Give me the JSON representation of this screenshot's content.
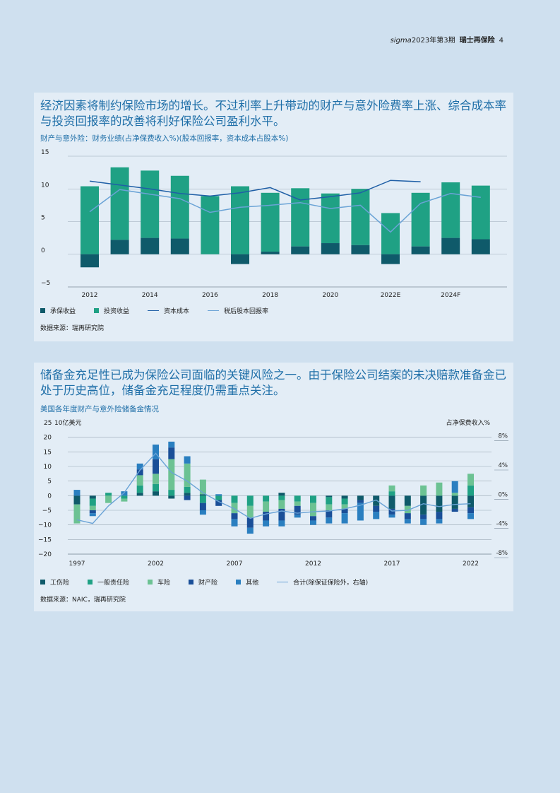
{
  "header": {
    "publication": "sigma",
    "issue": "2023年第3期",
    "brand": "瑞士再保险",
    "page_number": "4"
  },
  "colors": {
    "background": "#cfe0ef",
    "panel": "#e3edf6",
    "title_blue": "#1f6fa8",
    "underwriting": "#0f5a6a",
    "investment": "#1fa184",
    "cost_of_capital": "#1f5fa6",
    "roe": "#6aa3d6",
    "workers_comp": "#0f5a6a",
    "general_liability": "#1fa184",
    "auto": "#6cc293",
    "property": "#1a4f98",
    "other": "#2a7fc0",
    "total_line": "#6aa3d6"
  },
  "panel1": {
    "heading": "经济因素将制约保险市场的增长。不过利率上升带动的财产与意外险费率上涨、综合成本率与投资回报率的改善将利好保险公司盈利水平。",
    "chart_title": "财产与意外险：财务业绩(占净保费收入%)(股本回报率，资本成本占股本%)",
    "legend": [
      "承保收益",
      "投资收益",
      "资本成本",
      "税后股本回报率"
    ],
    "source": "数据来源：瑞再研究院"
  },
  "panel2": {
    "heading": "储备金充足性已成为保险公司面临的关键风险之一。由于保险公司结案的未决赔款准备金已处于历史高位，储备金充足程度仍需重点关注。",
    "chart_title": "美国各年度财产与意外险储备金情况",
    "left_unit": "10亿美元",
    "right_unit": "占净保费收入%",
    "legend": [
      "工伤险",
      "一般责任险",
      "车险",
      "财产险",
      "其他",
      "合计(除保证保险外，右轴)"
    ],
    "source": "数据来源：NAIC，瑞再研究院"
  },
  "chart_data": [
    {
      "type": "bar",
      "stacked": true,
      "x": [
        2012,
        2013,
        2014,
        2015,
        2016,
        2017,
        2018,
        2019,
        2020,
        2021,
        "2022E",
        "2023F",
        "2024F",
        "2025F"
      ],
      "x_tick_labels": [
        "2012",
        "2014",
        "2016",
        "2018",
        "2020",
        "2022E",
        "2024F"
      ],
      "ylim": [
        -5,
        15
      ],
      "yticks": [
        -5,
        0,
        5,
        10,
        15
      ],
      "series": [
        {
          "name": "承保收益",
          "type": "bar",
          "values": [
            -2.0,
            2.2,
            2.5,
            2.4,
            0.0,
            -1.5,
            0.4,
            1.2,
            1.7,
            1.4,
            -1.5,
            1.2,
            2.5,
            2.3
          ]
        },
        {
          "name": "投资收益",
          "type": "bar",
          "values": [
            10.4,
            11.1,
            10.3,
            9.6,
            8.9,
            10.4,
            9.0,
            8.9,
            7.6,
            8.6,
            6.3,
            8.2,
            8.5,
            8.2
          ]
        },
        {
          "name": "资本成本",
          "type": "line",
          "values": [
            11.2,
            10.6,
            10.0,
            9.3,
            8.9,
            9.4,
            10.2,
            8.3,
            8.8,
            9.4,
            11.3,
            11.1,
            null,
            null
          ]
        },
        {
          "name": "税后股本回报率",
          "type": "line",
          "values": [
            6.5,
            9.9,
            9.2,
            8.5,
            6.4,
            7.2,
            7.5,
            7.9,
            7.0,
            7.5,
            3.4,
            7.8,
            9.3,
            8.7
          ]
        }
      ]
    },
    {
      "type": "bar",
      "stacked": true,
      "x": [
        1997,
        1998,
        1999,
        2000,
        2001,
        2002,
        2003,
        2004,
        2005,
        2006,
        2007,
        2008,
        2009,
        2010,
        2011,
        2012,
        2013,
        2014,
        2015,
        2016,
        2017,
        2018,
        2019,
        2020,
        2021,
        2022
      ],
      "x_tick_labels": [
        "1997",
        "2002",
        "2007",
        "2012",
        "2017",
        "2022"
      ],
      "ylim": [
        -20,
        25
      ],
      "yticks": [
        -20,
        -15,
        -10,
        -5,
        0,
        5,
        10,
        15,
        20,
        25
      ],
      "y2_ticks": [
        "-8%",
        "-4%",
        "0%",
        "4%",
        "8%"
      ],
      "series": [
        {
          "name": "工伤险",
          "type": "bar",
          "values": [
            -3.0,
            -1.0,
            0.0,
            0.0,
            1.0,
            1.5,
            -1.0,
            1.0,
            0.5,
            0.0,
            0.0,
            0.0,
            0.0,
            1.0,
            0.0,
            0.0,
            -0.5,
            -1.0,
            -1.5,
            -3.5,
            -4.5,
            -3.5,
            -6.5,
            -5.5,
            -4.5,
            -4.0
          ]
        },
        {
          "name": "一般责任险",
          "type": "bar",
          "values": [
            0.0,
            -2.5,
            1.0,
            -1.0,
            2.5,
            2.5,
            2.0,
            2.0,
            -2.5,
            -1.5,
            -2.5,
            -3.5,
            -2.0,
            -1.5,
            -2.0,
            -2.5,
            -2.5,
            -2.0,
            0.0,
            0.0,
            1.5,
            0.0,
            0.0,
            0.0,
            0.0,
            3.5
          ]
        },
        {
          "name": "车险",
          "type": "bar",
          "values": [
            -6.5,
            -1.5,
            -2.5,
            -1.0,
            3.5,
            3.5,
            10.5,
            8.0,
            5.0,
            0.0,
            -3.5,
            -4.0,
            -3.5,
            -3.0,
            -1.5,
            -4.5,
            -2.0,
            -1.5,
            0.0,
            0.0,
            2.0,
            -2.5,
            3.5,
            4.5,
            1.0,
            4.0
          ]
        },
        {
          "name": "财产险",
          "type": "bar",
          "values": [
            0.0,
            -1.0,
            0.0,
            0.0,
            2.0,
            5.0,
            4.0,
            -1.5,
            -2.5,
            -2.0,
            -2.0,
            -3.5,
            -3.0,
            -4.0,
            -3.0,
            -1.5,
            -2.5,
            -1.5,
            -1.0,
            -2.0,
            -2.0,
            -2.0,
            -1.5,
            -2.5,
            -1.0,
            -2.0
          ]
        },
        {
          "name": "其他",
          "type": "bar",
          "values": [
            2.0,
            -1.0,
            0.0,
            1.5,
            2.0,
            5.0,
            2.0,
            2.5,
            -1.5,
            0.5,
            -2.5,
            -2.0,
            -2.0,
            -2.0,
            -1.0,
            -1.5,
            -2.0,
            -3.5,
            -6.0,
            -2.5,
            -1.0,
            -1.5,
            -2.0,
            -1.5,
            4.0,
            -2.0
          ]
        },
        {
          "name": "合计(除保证保险外，右轴)",
          "type": "line",
          "axis": "right",
          "values": [
            -3.3,
            -3.8,
            -1.4,
            0.4,
            3.5,
            5.8,
            3.2,
            2.0,
            0.4,
            -0.8,
            -1.8,
            -3.1,
            -2.5,
            -2.1,
            -2.4,
            -2.2,
            -2.1,
            -1.8,
            -1.3,
            -0.6,
            -2.1,
            -2.0,
            -1.1,
            -1.5,
            -1.2,
            -1.1
          ]
        }
      ]
    }
  ]
}
